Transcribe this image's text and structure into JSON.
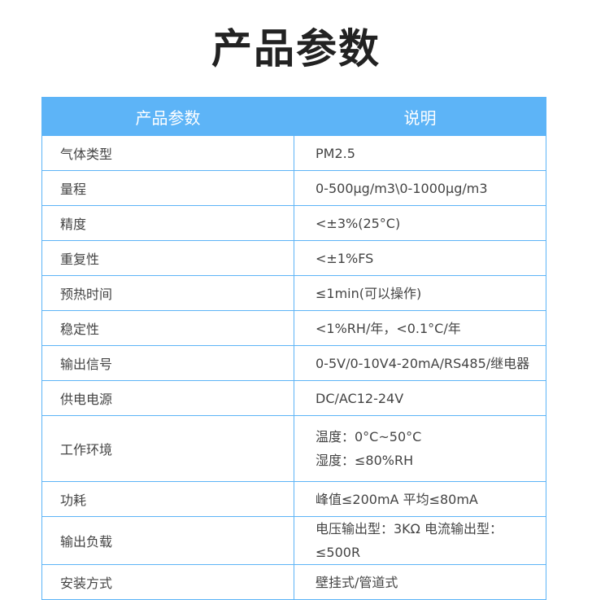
{
  "title": "产品参数",
  "table": {
    "headers": [
      "产品参数",
      "说明"
    ],
    "rows": [
      {
        "param": "气体类型",
        "desc": [
          "PM2.5"
        ]
      },
      {
        "param": "量程",
        "desc": [
          "0-500μg/m3\\0-1000μg/m3"
        ]
      },
      {
        "param": "精度",
        "desc": [
          "<±3%(25°C)"
        ]
      },
      {
        "param": "重复性",
        "desc": [
          "<±1%FS"
        ]
      },
      {
        "param": "预热时间",
        "desc": [
          "≤1min(可以操作)"
        ]
      },
      {
        "param": "稳定性",
        "desc": [
          "<1%RH/年，<0.1°C/年"
        ]
      },
      {
        "param": "输出信号",
        "desc": [
          "0-5V/0-10V4-20mA/RS485/继电器"
        ]
      },
      {
        "param": "供电电源",
        "desc": [
          "DC/AC12-24V"
        ]
      },
      {
        "param": "工作环境",
        "desc": [
          "温度：0°C~50°C",
          "湿度：≤80%RH"
        ]
      },
      {
        "param": "功耗",
        "desc": [
          "峰值≤200mA  平均≤80mA"
        ]
      },
      {
        "param": "输出负载",
        "desc": [
          "电压输出型：3KΩ 电流输出型：≤500R"
        ]
      },
      {
        "param": "安装方式",
        "desc": [
          "壁挂式/管道式"
        ]
      }
    ]
  },
  "colors": {
    "header_bg": "#5db4f7",
    "border": "#5db4f7"
  }
}
